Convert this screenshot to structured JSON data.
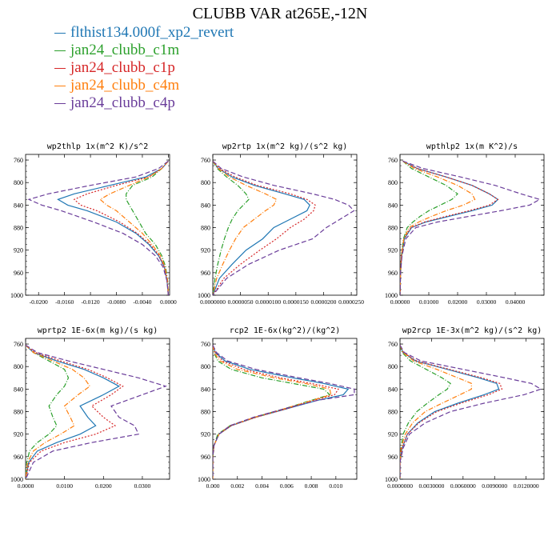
{
  "title": "CLUBB VAR at265E,-12N",
  "legend": [
    {
      "label": "flthist134.000f_xp2_revert",
      "color": "#1f77b4",
      "dash": "none"
    },
    {
      "label": "jan24_clubb_c1m",
      "color": "#2ca02c",
      "dash": "6,2,1,2"
    },
    {
      "label": "jan24_clubb_c1p",
      "color": "#d62728",
      "dash": "2,2"
    },
    {
      "label": "jan24_clubb_c4m",
      "color": "#ff7f0e",
      "dash": "6,2,1,2"
    },
    {
      "label": "jan24_clubb_c4p",
      "color": "#6a3d9a",
      "dash": "6,3"
    }
  ],
  "chart_data": [
    {
      "type": "line",
      "title": "wp2thlp  1x(m^2 K)/s^2",
      "xlim": [
        -0.022,
        0.0002
      ],
      "ylim": [
        1000,
        750
      ],
      "xticks": [
        -0.02,
        -0.016,
        -0.012,
        -0.008,
        -0.004,
        0.0
      ],
      "xticklabels": [
        "-0.0200",
        "-0.0160",
        "-0.0120",
        "-0.0080",
        "-0.0040",
        "0.0000"
      ],
      "yticks": [
        760,
        800,
        840,
        880,
        920,
        960,
        1000
      ],
      "y": [
        762,
        775,
        790,
        805,
        820,
        830,
        840,
        850,
        870,
        890,
        910,
        930,
        950,
        975,
        1000
      ],
      "series": [
        {
          "name": "flthist134.000f_xp2_revert",
          "values": [
            0.0,
            -0.001,
            -0.0035,
            -0.009,
            -0.0145,
            -0.017,
            -0.0155,
            -0.0125,
            -0.008,
            -0.005,
            -0.003,
            -0.0015,
            -0.0006,
            -0.0002,
            0.0
          ]
        },
        {
          "name": "jan24_clubb_c1m",
          "values": [
            0.0,
            -0.001,
            -0.0025,
            -0.0055,
            -0.0065,
            -0.0065,
            -0.006,
            -0.0055,
            -0.0045,
            -0.0035,
            -0.002,
            -0.001,
            -0.0004,
            -0.0001,
            0.0
          ]
        },
        {
          "name": "jan24_clubb_c1p",
          "values": [
            0.0,
            -0.001,
            -0.003,
            -0.008,
            -0.0125,
            -0.0145,
            -0.0135,
            -0.011,
            -0.0075,
            -0.0048,
            -0.0028,
            -0.0014,
            -0.0006,
            -0.0002,
            0.0
          ]
        },
        {
          "name": "jan24_clubb_c4m",
          "values": [
            0.0,
            -0.001,
            -0.003,
            -0.006,
            -0.009,
            -0.0105,
            -0.0095,
            -0.008,
            -0.006,
            -0.004,
            -0.0025,
            -0.0012,
            -0.0005,
            -0.0001,
            0.0
          ]
        },
        {
          "name": "jan24_clubb_c4p",
          "values": [
            0.0,
            -0.0015,
            -0.005,
            -0.012,
            -0.0185,
            -0.0215,
            -0.0195,
            -0.0165,
            -0.0115,
            -0.007,
            -0.004,
            -0.002,
            -0.0008,
            -0.0002,
            0.0
          ]
        }
      ]
    },
    {
      "type": "line",
      "title": "wp2rtp  1x(m^2 kg)/(s^2 kg)",
      "xlim": [
        0.0,
        2.6e-05
      ],
      "ylim": [
        1000,
        750
      ],
      "xticks": [
        0.0,
        5e-06,
        1e-05,
        1.5e-05,
        2e-05,
        2.5e-05
      ],
      "xticklabels": [
        "0.0000000",
        "0.0000050",
        "0.0000100",
        "0.0000150",
        "0.0000200",
        "0.0000250"
      ],
      "yticks": [
        760,
        800,
        840,
        880,
        920,
        960,
        1000
      ],
      "y": [
        762,
        775,
        790,
        805,
        820,
        830,
        840,
        850,
        865,
        880,
        900,
        920,
        945,
        970,
        1000
      ],
      "series": [
        {
          "name": "flthist134.000f_xp2_revert",
          "values": [
            0.0,
            1e-06,
            3.5e-06,
            7.5e-06,
            1.3e-05,
            1.65e-05,
            1.75e-05,
            1.7e-05,
            1.4e-05,
            1.1e-05,
            9e-06,
            6e-06,
            3.5e-06,
            1.2e-06,
            0.0
          ]
        },
        {
          "name": "jan24_clubb_c1m",
          "values": [
            0.0,
            8e-07,
            2.5e-06,
            4.5e-06,
            6e-06,
            6.5e-06,
            5.5e-06,
            4.5e-06,
            3.5e-06,
            2.8e-06,
            2.1e-06,
            1.5e-06,
            9e-07,
            4e-07,
            0.0
          ]
        },
        {
          "name": "jan24_clubb_c1p",
          "values": [
            0.0,
            1.2e-06,
            4e-06,
            8e-06,
            1.4e-05,
            1.7e-05,
            1.85e-05,
            1.82e-05,
            1.65e-05,
            1.4e-05,
            1.15e-05,
            8.5e-06,
            5e-06,
            2e-06,
            0.0
          ]
        },
        {
          "name": "jan24_clubb_c4m",
          "values": [
            0.0,
            1e-06,
            3e-06,
            6e-06,
            9.5e-06,
            1.15e-05,
            1.1e-05,
            9.5e-06,
            7.5e-06,
            5.5e-06,
            4.1e-06,
            3e-06,
            1.8e-06,
            7e-07,
            0.0
          ]
        },
        {
          "name": "jan24_clubb_c4p",
          "values": [
            0.0,
            1.5e-06,
            5.5e-06,
            1.1e-05,
            1.8e-05,
            2.2e-05,
            2.45e-05,
            2.55e-05,
            2.3e-05,
            2.05e-05,
            1.8e-05,
            1.2e-05,
            6.5e-06,
            2.5e-06,
            0.0
          ]
        }
      ]
    },
    {
      "type": "line",
      "title": "wpthlp2  1x(m K^2)/s",
      "xlim": [
        0.0,
        0.05
      ],
      "ylim": [
        1000,
        750
      ],
      "xticks": [
        0.0,
        0.01,
        0.02,
        0.03,
        0.04
      ],
      "xticklabels": [
        "0.00000",
        "0.01000",
        "0.02000",
        "0.03000",
        "0.04000"
      ],
      "yticks": [
        760,
        800,
        840,
        880,
        920,
        960,
        1000
      ],
      "y": [
        762,
        775,
        790,
        805,
        820,
        830,
        840,
        850,
        860,
        870,
        880,
        900,
        930,
        960,
        1000
      ],
      "series": [
        {
          "name": "flthist134.000f_xp2_revert",
          "values": [
            0.001,
            0.006,
            0.016,
            0.025,
            0.031,
            0.034,
            0.032,
            0.025,
            0.017,
            0.009,
            0.004,
            0.0015,
            0.0006,
            0.0002,
            0.0
          ]
        },
        {
          "name": "jan24_clubb_c1m",
          "values": [
            0.001,
            0.004,
            0.01,
            0.016,
            0.02,
            0.018,
            0.014,
            0.01,
            0.007,
            0.0045,
            0.0025,
            0.0012,
            0.0005,
            0.0002,
            0.0
          ]
        },
        {
          "name": "jan24_clubb_c1p",
          "values": [
            0.001,
            0.006,
            0.016,
            0.025,
            0.031,
            0.034,
            0.031,
            0.024,
            0.016,
            0.0085,
            0.0038,
            0.0014,
            0.0005,
            0.0002,
            0.0
          ]
        },
        {
          "name": "jan24_clubb_c4m",
          "values": [
            0.001,
            0.005,
            0.013,
            0.02,
            0.025,
            0.026,
            0.022,
            0.016,
            0.011,
            0.0065,
            0.0032,
            0.0013,
            0.0005,
            0.0002,
            0.0
          ]
        },
        {
          "name": "jan24_clubb_c4p",
          "values": [
            0.001,
            0.008,
            0.021,
            0.033,
            0.042,
            0.0485,
            0.045,
            0.035,
            0.024,
            0.013,
            0.0055,
            0.002,
            0.0007,
            0.0002,
            0.0
          ]
        }
      ]
    },
    {
      "type": "line",
      "title": "wprtp2  1E-6x(m kg)/(s kg)",
      "xlim": [
        0.0,
        0.037
      ],
      "ylim": [
        1000,
        750
      ],
      "xticks": [
        0.0,
        0.01,
        0.02,
        0.03
      ],
      "xticklabels": [
        "0.0000",
        "0.0100",
        "0.0200",
        "0.0300"
      ],
      "yticks": [
        760,
        800,
        840,
        880,
        920,
        960,
        1000
      ],
      "y": [
        762,
        775,
        790,
        805,
        820,
        835,
        850,
        870,
        890,
        905,
        920,
        935,
        950,
        970,
        1000
      ],
      "series": [
        {
          "name": "flthist134.000f_xp2_revert",
          "values": [
            0.0,
            0.002,
            0.008,
            0.015,
            0.02,
            0.024,
            0.02,
            0.014,
            0.016,
            0.018,
            0.014,
            0.008,
            0.003,
            0.0008,
            0.0
          ]
        },
        {
          "name": "jan24_clubb_c1m",
          "values": [
            0.0,
            0.002,
            0.006,
            0.01,
            0.011,
            0.01,
            0.008,
            0.006,
            0.007,
            0.008,
            0.006,
            0.003,
            0.001,
            0.0003,
            0.0
          ]
        },
        {
          "name": "jan24_clubb_c1p",
          "values": [
            0.0,
            0.0025,
            0.009,
            0.016,
            0.021,
            0.025,
            0.022,
            0.017,
            0.02,
            0.023,
            0.018,
            0.01,
            0.004,
            0.001,
            0.0
          ]
        },
        {
          "name": "jan24_clubb_c4m",
          "values": [
            0.0,
            0.002,
            0.007,
            0.012,
            0.015,
            0.0165,
            0.0135,
            0.01,
            0.0115,
            0.0125,
            0.009,
            0.005,
            0.002,
            0.0005,
            0.0
          ]
        },
        {
          "name": "jan24_clubb_c4p",
          "values": [
            0.0,
            0.003,
            0.011,
            0.02,
            0.029,
            0.036,
            0.03,
            0.022,
            0.024,
            0.028,
            0.029,
            0.017,
            0.007,
            0.002,
            0.0
          ]
        }
      ]
    },
    {
      "type": "line",
      "title": "rcp2  1E-6x(kg^2)/(kg^2)",
      "xlim": [
        0.0,
        0.0117
      ],
      "ylim": [
        1000,
        750
      ],
      "xticks": [
        0.0,
        0.002,
        0.004,
        0.006,
        0.008,
        0.01
      ],
      "xticklabels": [
        "0.000",
        "0.002",
        "0.004",
        "0.006",
        "0.008",
        "0.010"
      ],
      "yticks": [
        760,
        800,
        840,
        880,
        920,
        960,
        1000
      ],
      "y": [
        762,
        775,
        790,
        805,
        820,
        830,
        840,
        850,
        860,
        875,
        890,
        905,
        920,
        940,
        960,
        1000
      ],
      "series": [
        {
          "name": "flthist134.000f_xp2_revert",
          "values": [
            0.0,
            0.0002,
            0.001,
            0.003,
            0.0065,
            0.009,
            0.011,
            0.0106,
            0.0085,
            0.006,
            0.0035,
            0.0015,
            0.0005,
            0.0001,
            0.0,
            0.0
          ]
        },
        {
          "name": "jan24_clubb_c1m",
          "values": [
            0.0,
            0.0001,
            0.0004,
            0.0015,
            0.004,
            0.0065,
            0.009,
            0.0095,
            0.008,
            0.0058,
            0.0034,
            0.0014,
            0.0004,
            0.0001,
            0.0,
            0.0
          ]
        },
        {
          "name": "jan24_clubb_c1p",
          "values": [
            0.0,
            0.0002,
            0.0008,
            0.0025,
            0.0055,
            0.008,
            0.0102,
            0.0099,
            0.0082,
            0.006,
            0.0035,
            0.0015,
            0.0005,
            0.0001,
            0.0,
            0.0
          ]
        },
        {
          "name": "jan24_clubb_c4m",
          "values": [
            0.0,
            0.0001,
            0.0006,
            0.002,
            0.005,
            0.0075,
            0.0095,
            0.0096,
            0.0081,
            0.0058,
            0.0034,
            0.0014,
            0.0005,
            0.0001,
            0.0,
            0.0
          ]
        },
        {
          "name": "jan24_clubb_c4p",
          "values": [
            0.0,
            0.0003,
            0.0012,
            0.0035,
            0.007,
            0.0095,
            0.0115,
            0.0115,
            0.0085,
            0.0058,
            0.0033,
            0.0014,
            0.0005,
            0.0001,
            0.0,
            0.0
          ]
        }
      ]
    },
    {
      "type": "line",
      "title": "wp2rcp  1E-3x(m^2 kg)/(s^2 kg)",
      "xlim": [
        0.0,
        0.0137
      ],
      "ylim": [
        1000,
        750
      ],
      "xticks": [
        0.0,
        0.003,
        0.006,
        0.009,
        0.012
      ],
      "xticklabels": [
        "0.0000000",
        "0.0030000",
        "0.0060000",
        "0.0090000",
        "0.0120000"
      ],
      "yticks": [
        760,
        800,
        840,
        880,
        920,
        960,
        1000
      ],
      "y": [
        762,
        775,
        790,
        805,
        820,
        830,
        840,
        850,
        865,
        880,
        900,
        920,
        945,
        970,
        1000
      ],
      "series": [
        {
          "name": "flthist134.000f_xp2_revert",
          "values": [
            0.0,
            0.0003,
            0.0015,
            0.0045,
            0.0075,
            0.0092,
            0.0094,
            0.008,
            0.0055,
            0.0033,
            0.0017,
            0.0007,
            0.0002,
            0.0,
            0.0
          ]
        },
        {
          "name": "jan24_clubb_c1m",
          "values": [
            0.0,
            0.0002,
            0.001,
            0.0025,
            0.004,
            0.0048,
            0.0045,
            0.0037,
            0.0026,
            0.0016,
            0.0008,
            0.0003,
            0.0001,
            0.0,
            0.0
          ]
        },
        {
          "name": "jan24_clubb_c1p",
          "values": [
            0.0,
            0.0003,
            0.0016,
            0.0047,
            0.0078,
            0.0095,
            0.0097,
            0.0084,
            0.0058,
            0.0035,
            0.0018,
            0.0007,
            0.0002,
            0.0,
            0.0
          ]
        },
        {
          "name": "jan24_clubb_c4m",
          "values": [
            0.0,
            0.0003,
            0.0013,
            0.0035,
            0.0055,
            0.0068,
            0.0068,
            0.0057,
            0.004,
            0.0024,
            0.0012,
            0.0005,
            0.0001,
            0.0,
            0.0
          ]
        },
        {
          "name": "jan24_clubb_c4p",
          "values": [
            0.0,
            0.0004,
            0.002,
            0.006,
            0.01,
            0.0125,
            0.0134,
            0.0118,
            0.008,
            0.0048,
            0.0024,
            0.0009,
            0.0003,
            0.0,
            0.0
          ]
        }
      ]
    }
  ]
}
